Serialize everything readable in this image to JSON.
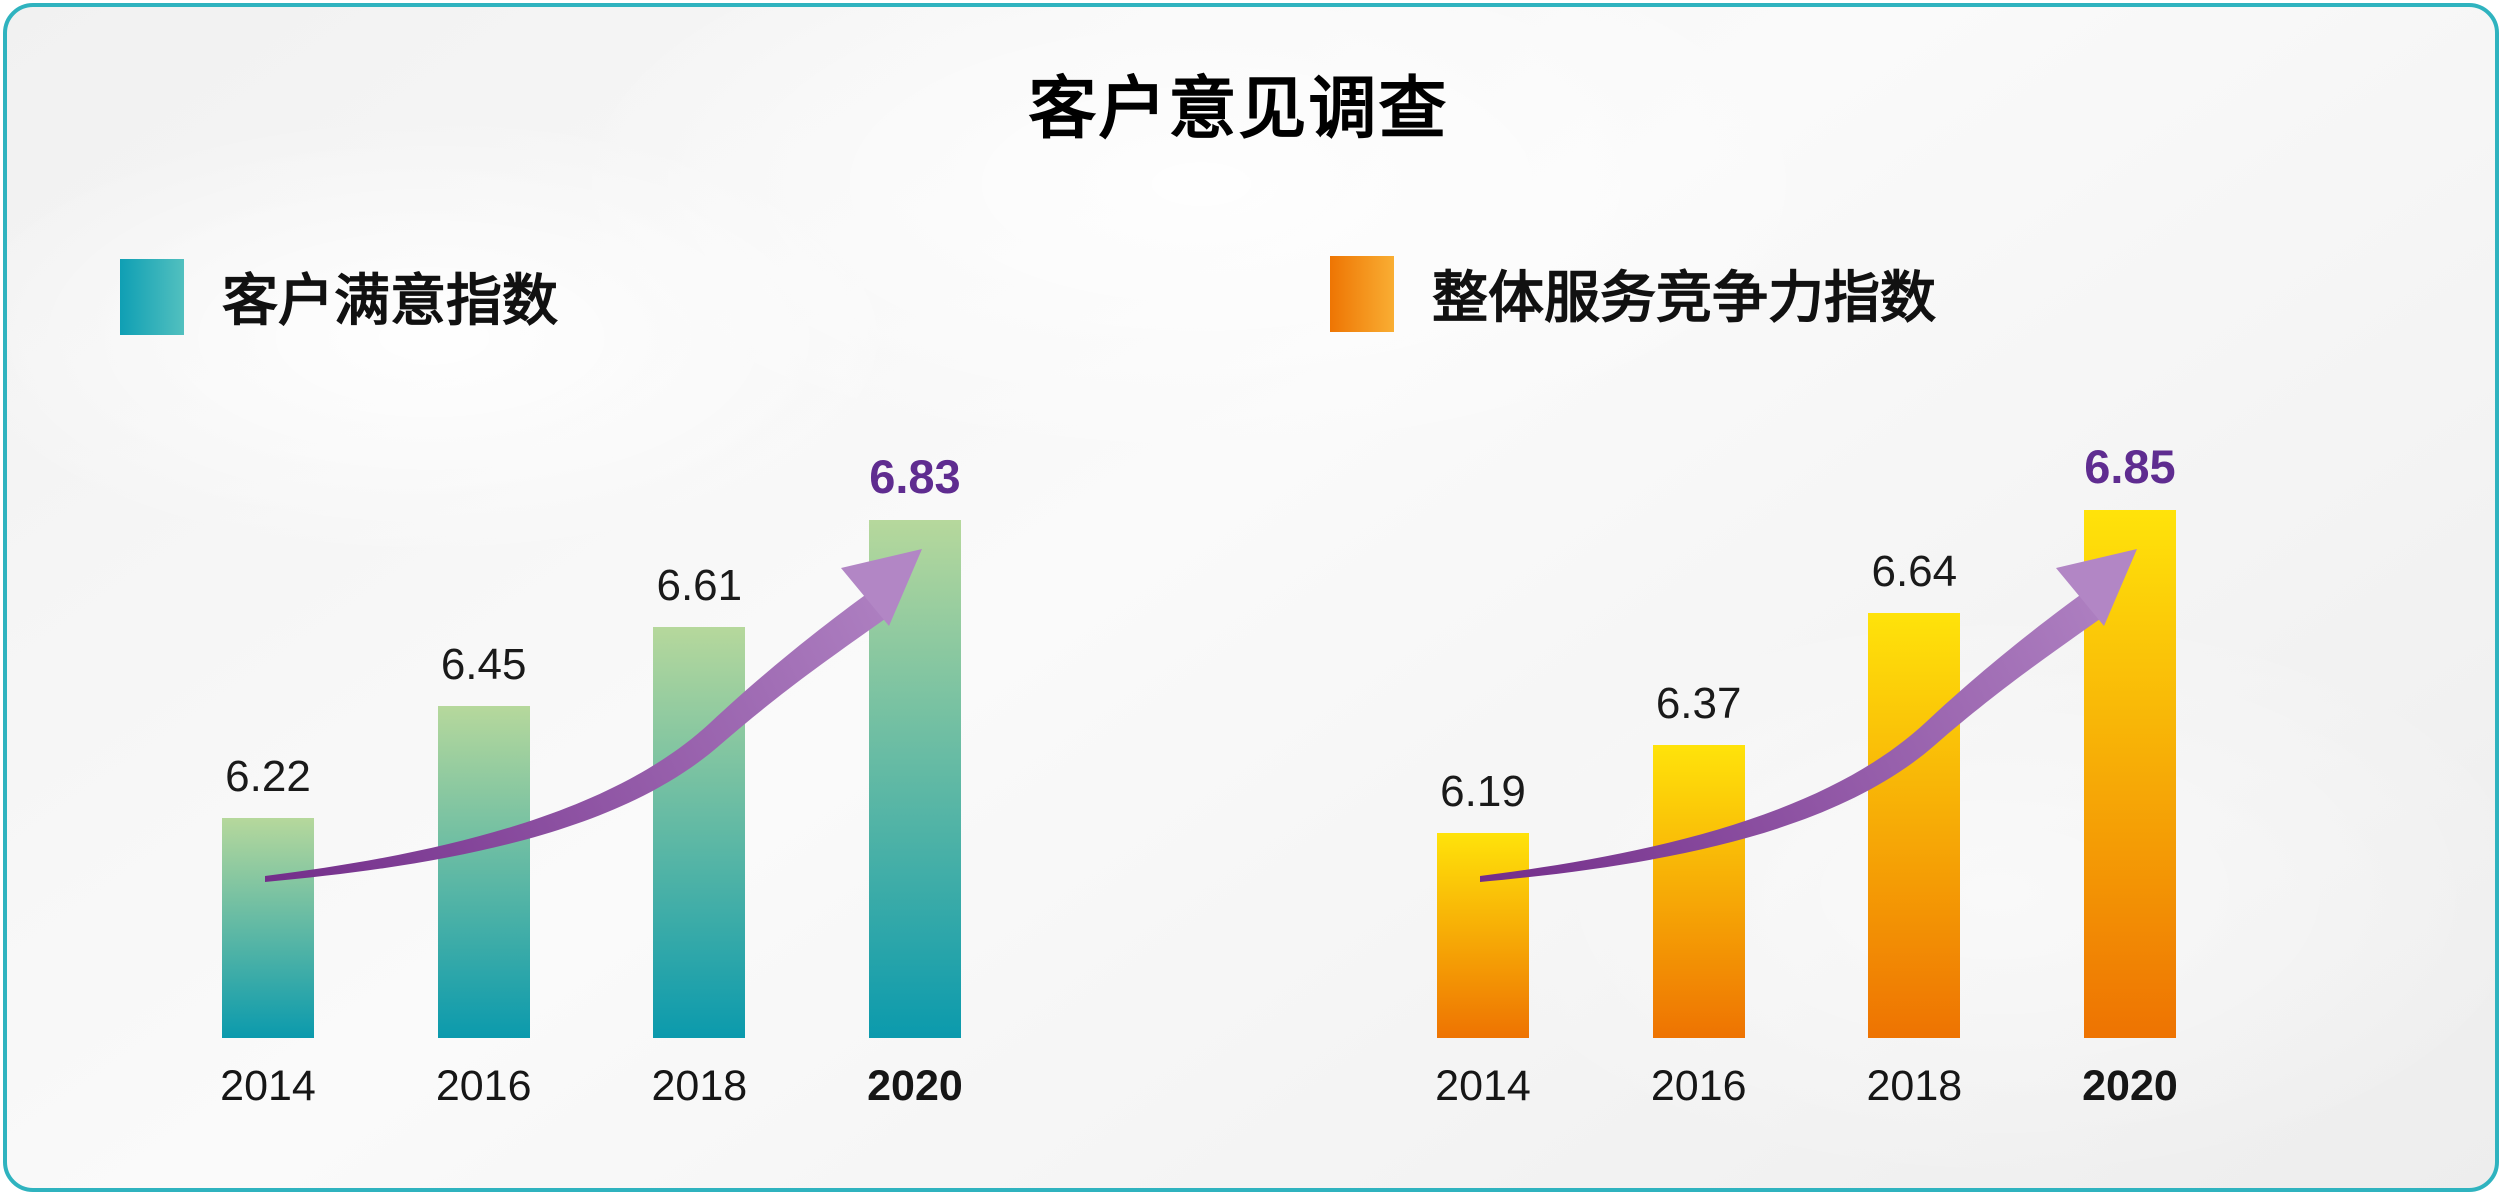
{
  "title": "客户意见调查",
  "colors": {
    "card_border": "#2fb3bf",
    "background": "#f4f4f4",
    "title_text": "#000000",
    "value_label": "#1a1a1a",
    "highlight_value": "#5f2c90",
    "arrow_tail": "#732d8a",
    "arrow_head": "#b286c5"
  },
  "chart_data": [
    {
      "type": "bar",
      "legend": "客户满意指数",
      "categories": [
        "2014",
        "2016",
        "2018",
        "2020"
      ],
      "values": [
        6.22,
        6.45,
        6.61,
        6.83
      ],
      "highlight_index": 3,
      "ylim": [
        5.77,
        7.02
      ],
      "grid": false,
      "legend_position": "top-left",
      "bar_gradient": [
        "#b6d89c",
        "#0b9aad"
      ],
      "legend_gradient": [
        "#0f9fb4",
        "#52c0bf"
      ],
      "annotation": "rising-trend-arrow"
    },
    {
      "type": "bar",
      "legend": "整体服务竞争力指数",
      "categories": [
        "2014",
        "2016",
        "2018",
        "2020"
      ],
      "values": [
        6.19,
        6.37,
        6.64,
        6.85
      ],
      "highlight_index": 3,
      "ylim": [
        5.77,
        7.02
      ],
      "grid": false,
      "legend_position": "top-left",
      "bar_gradient": [
        "#ffe30a",
        "#ee7302"
      ],
      "legend_gradient": [
        "#ee7503",
        "#f9ae33"
      ],
      "annotation": "rising-trend-arrow"
    }
  ]
}
